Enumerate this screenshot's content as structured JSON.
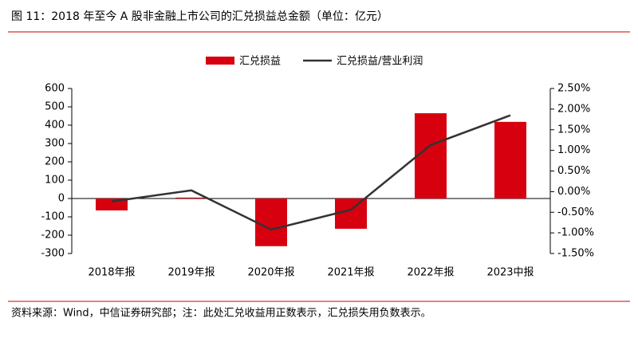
{
  "chart_data": {
    "type": "bar",
    "title": "图 11：2018 年至今 A 股非金融上市公司的汇兑损益总金额（单位：亿元）",
    "source": "资料来源：Wind，中信证券研究部；注：此处汇兑收益用正数表示，汇兑损失用负数表示。",
    "categories": [
      "2018年报",
      "2019年报",
      "2020年报",
      "2021年报",
      "2022年报",
      "2023中报"
    ],
    "series": [
      {
        "name": "汇兑损益",
        "type": "bar",
        "color": "#d7000f",
        "values": [
          -65,
          5,
          -260,
          -165,
          465,
          418
        ]
      },
      {
        "name": "汇兑损益/营业利润",
        "type": "line",
        "axis": "y2",
        "color": "#333333",
        "values": [
          -0.24,
          0.03,
          -0.92,
          -0.44,
          1.13,
          1.85
        ]
      }
    ],
    "ylim": [
      -300,
      600
    ],
    "yticks": [
      -300,
      -200,
      -100,
      0,
      100,
      200,
      300,
      400,
      500,
      600
    ],
    "y2lim": [
      -1.5,
      2.5
    ],
    "y2ticks": [
      {
        "value": -1.5,
        "label": "-1.50%"
      },
      {
        "value": -1.0,
        "label": "-1.00%"
      },
      {
        "value": -0.5,
        "label": "-0.50%"
      },
      {
        "value": 0,
        "label": "0.00%"
      },
      {
        "value": 0.5,
        "label": "0.50%"
      },
      {
        "value": 1.0,
        "label": "1.00%"
      },
      {
        "value": 1.5,
        "label": "1.50%"
      },
      {
        "value": 2.0,
        "label": "2.00%"
      },
      {
        "value": 2.5,
        "label": "2.50%"
      }
    ],
    "legend": "top"
  }
}
